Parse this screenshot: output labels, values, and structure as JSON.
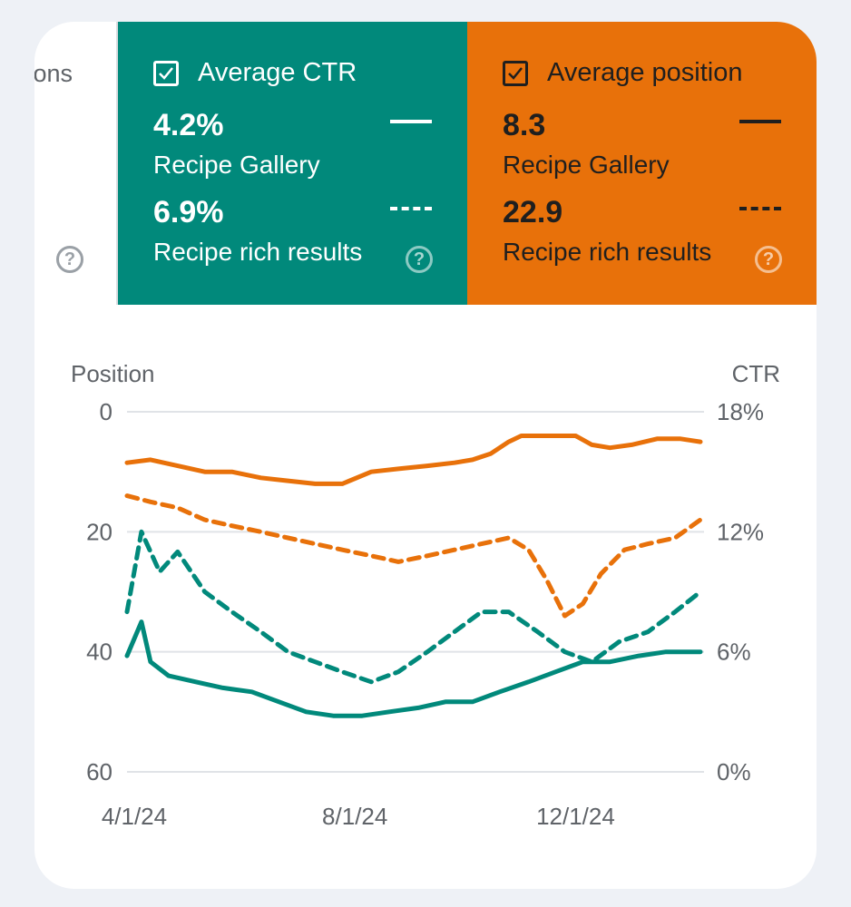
{
  "tiles": {
    "prev": {
      "label_fragment": "ons",
      "help_icon": "?"
    },
    "ctr": {
      "title": "Average CTR",
      "checked": true,
      "color": "#01897b",
      "metrics": [
        {
          "value": "4.2%",
          "name": "Recipe Gallery",
          "line_style": "solid"
        },
        {
          "value": "6.9%",
          "name": "Recipe rich results",
          "line_style": "dashed"
        }
      ],
      "help_icon": "?"
    },
    "position": {
      "title": "Average position",
      "checked": true,
      "color": "#e8710a",
      "metrics": [
        {
          "value": "8.3",
          "name": "Recipe Gallery",
          "line_style": "solid"
        },
        {
          "value": "22.9",
          "name": "Recipe rich results",
          "line_style": "dashed"
        }
      ],
      "help_icon": "?"
    }
  },
  "chart_data": {
    "type": "line",
    "left_axis": {
      "label": "Position",
      "ticks": [
        "0",
        "20",
        "40",
        "60"
      ],
      "range": [
        0,
        60
      ],
      "inverted": true
    },
    "right_axis": {
      "label": "CTR",
      "ticks": [
        "18%",
        "12%",
        "6%",
        "0%"
      ],
      "range": [
        0,
        18
      ]
    },
    "x_ticks": [
      "4/1/24",
      "8/1/24",
      "12/1/24"
    ],
    "x_range": [
      "2024-03-28",
      "2025-02-10"
    ],
    "grid": true,
    "series": [
      {
        "name": "Recipe Gallery",
        "metric": "Average position",
        "axis": "left",
        "style": "solid",
        "color": "#e8710a",
        "points": [
          [
            "2024-03-28",
            8.5
          ],
          [
            "2024-04-10",
            8
          ],
          [
            "2024-04-25",
            9
          ],
          [
            "2024-05-10",
            10
          ],
          [
            "2024-05-25",
            10
          ],
          [
            "2024-06-10",
            11
          ],
          [
            "2024-06-25",
            11.5
          ],
          [
            "2024-07-10",
            12
          ],
          [
            "2024-07-25",
            12
          ],
          [
            "2024-08-10",
            10
          ],
          [
            "2024-08-25",
            9.5
          ],
          [
            "2024-09-10",
            9
          ],
          [
            "2024-09-25",
            8.5
          ],
          [
            "2024-10-05",
            8
          ],
          [
            "2024-10-15",
            7
          ],
          [
            "2024-10-25",
            5
          ],
          [
            "2024-11-01",
            4
          ],
          [
            "2024-11-15",
            4
          ],
          [
            "2024-12-01",
            4
          ],
          [
            "2024-12-10",
            5.5
          ],
          [
            "2024-12-20",
            6
          ],
          [
            "2025-01-01",
            5.5
          ],
          [
            "2025-01-15",
            4.5
          ],
          [
            "2025-01-28",
            4.5
          ],
          [
            "2025-02-08",
            5
          ]
        ]
      },
      {
        "name": "Recipe rich results",
        "metric": "Average position",
        "axis": "left",
        "style": "dashed",
        "color": "#e8710a",
        "points": [
          [
            "2024-03-28",
            14
          ],
          [
            "2024-04-10",
            15
          ],
          [
            "2024-04-25",
            16
          ],
          [
            "2024-05-10",
            18
          ],
          [
            "2024-05-25",
            19
          ],
          [
            "2024-06-10",
            20
          ],
          [
            "2024-06-25",
            21
          ],
          [
            "2024-07-10",
            22
          ],
          [
            "2024-07-25",
            23
          ],
          [
            "2024-08-10",
            24
          ],
          [
            "2024-08-25",
            25
          ],
          [
            "2024-09-10",
            24
          ],
          [
            "2024-09-25",
            23
          ],
          [
            "2024-10-10",
            22
          ],
          [
            "2024-10-25",
            21
          ],
          [
            "2024-11-05",
            23
          ],
          [
            "2024-11-15",
            28
          ],
          [
            "2024-11-25",
            34
          ],
          [
            "2024-12-05",
            32
          ],
          [
            "2024-12-15",
            27
          ],
          [
            "2024-12-28",
            23
          ],
          [
            "2025-01-10",
            22
          ],
          [
            "2025-01-25",
            21
          ],
          [
            "2025-02-08",
            18
          ]
        ]
      },
      {
        "name": "Recipe Gallery",
        "metric": "Average CTR",
        "axis": "right",
        "style": "solid",
        "color": "#01897b",
        "points": [
          [
            "2024-03-28",
            5.8
          ],
          [
            "2024-04-05",
            7.5
          ],
          [
            "2024-04-10",
            5.5
          ],
          [
            "2024-04-20",
            4.8
          ],
          [
            "2024-05-05",
            4.5
          ],
          [
            "2024-05-20",
            4.2
          ],
          [
            "2024-06-05",
            4
          ],
          [
            "2024-06-20",
            3.5
          ],
          [
            "2024-07-05",
            3
          ],
          [
            "2024-07-20",
            2.8
          ],
          [
            "2024-08-05",
            2.8
          ],
          [
            "2024-08-20",
            3
          ],
          [
            "2024-09-05",
            3.2
          ],
          [
            "2024-09-20",
            3.5
          ],
          [
            "2024-10-05",
            3.5
          ],
          [
            "2024-10-20",
            4
          ],
          [
            "2024-11-05",
            4.5
          ],
          [
            "2024-11-20",
            5
          ],
          [
            "2024-12-05",
            5.5
          ],
          [
            "2024-12-20",
            5.5
          ],
          [
            "2025-01-05",
            5.8
          ],
          [
            "2025-01-20",
            6
          ],
          [
            "2025-02-08",
            6
          ]
        ]
      },
      {
        "name": "Recipe rich results",
        "metric": "Average CTR",
        "axis": "right",
        "style": "dashed",
        "color": "#01897b",
        "points": [
          [
            "2024-03-28",
            8
          ],
          [
            "2024-04-05",
            12
          ],
          [
            "2024-04-15",
            10
          ],
          [
            "2024-04-25",
            11
          ],
          [
            "2024-05-10",
            9
          ],
          [
            "2024-05-25",
            8
          ],
          [
            "2024-06-10",
            7
          ],
          [
            "2024-06-25",
            6
          ],
          [
            "2024-07-10",
            5.5
          ],
          [
            "2024-07-25",
            5
          ],
          [
            "2024-08-10",
            4.5
          ],
          [
            "2024-08-25",
            5
          ],
          [
            "2024-09-10",
            6
          ],
          [
            "2024-09-25",
            7
          ],
          [
            "2024-10-10",
            8
          ],
          [
            "2024-10-25",
            8
          ],
          [
            "2024-11-10",
            7
          ],
          [
            "2024-11-25",
            6
          ],
          [
            "2024-12-10",
            5.5
          ],
          [
            "2024-12-25",
            6.5
          ],
          [
            "2025-01-10",
            7
          ],
          [
            "2025-01-25",
            8
          ],
          [
            "2025-02-08",
            9
          ]
        ]
      }
    ]
  }
}
